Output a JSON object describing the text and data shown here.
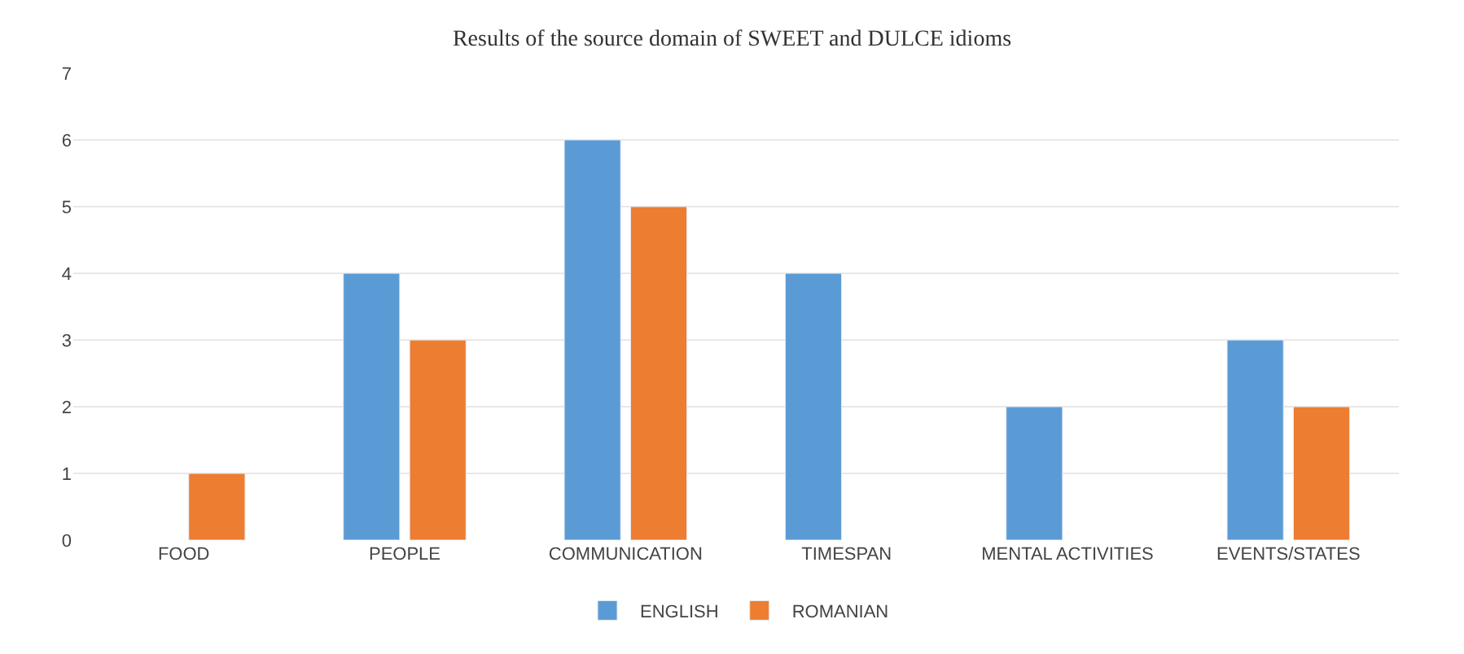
{
  "chart_data": {
    "type": "bar",
    "title": "Results of the source domain of SWEET and DULCE idioms",
    "categories": [
      "FOOD",
      "PEOPLE",
      "COMMUNICATION",
      "TIMESPAN",
      "MENTAL ACTIVITIES",
      "EVENTS/STATES"
    ],
    "series": [
      {
        "name": "ENGLISH",
        "color": "#5b9bd5",
        "values": [
          null,
          4,
          6,
          4,
          2,
          3
        ]
      },
      {
        "name": "ROMANIAN",
        "color": "#ed7d31",
        "values": [
          1,
          3,
          5,
          null,
          null,
          2
        ]
      }
    ],
    "ylim": [
      0,
      7
    ],
    "yticks": [
      0,
      1,
      2,
      3,
      4,
      5,
      6,
      7
    ],
    "grid": "y",
    "legend": "bottom"
  }
}
